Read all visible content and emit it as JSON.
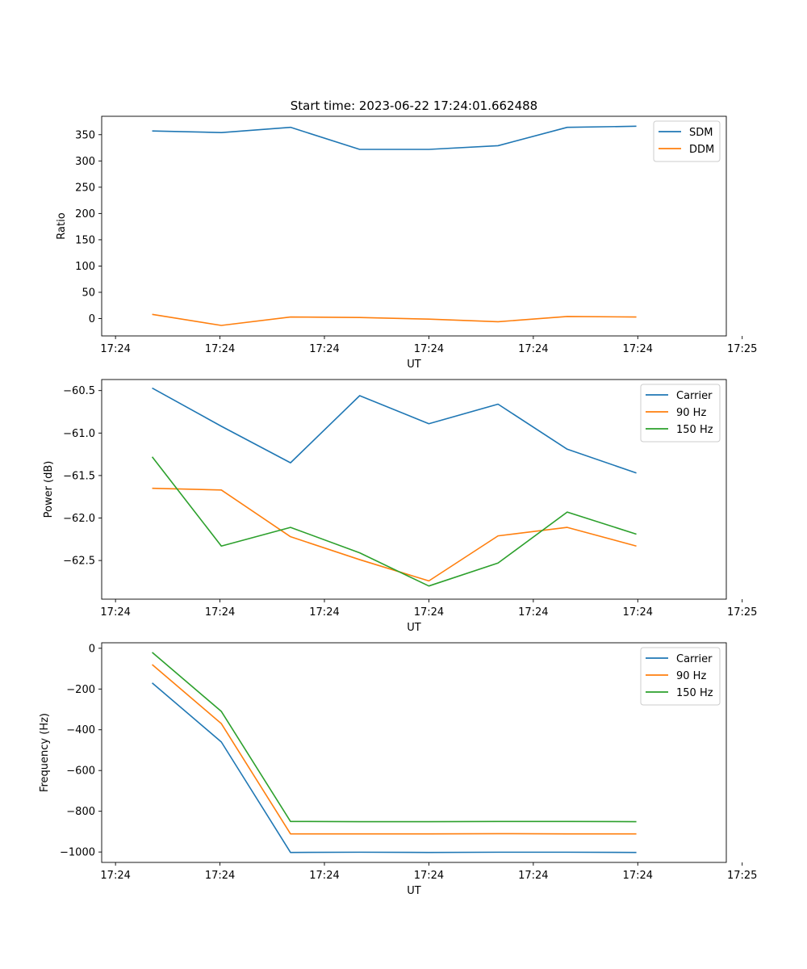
{
  "title": "Start time: 2023-06-22 17:24:01.662488",
  "chart_data": [
    {
      "type": "line",
      "ylabel": "Ratio",
      "xlabel": "UT",
      "x": [
        1,
        2,
        3,
        4,
        5,
        6,
        7,
        8
      ],
      "xlim": [
        0.27,
        9.3
      ],
      "xticks": [
        0.47,
        1.98,
        3.49,
        5.0,
        6.51,
        8.02,
        9.53
      ],
      "xtick_labels": [
        "17:24",
        "17:24",
        "17:24",
        "17:24",
        "17:24",
        "17:24",
        "17:25"
      ],
      "ylim": [
        -33,
        385
      ],
      "yticks": [
        0,
        50,
        100,
        150,
        200,
        250,
        300,
        350
      ],
      "legend": "top-right",
      "series": [
        {
          "name": "SDM",
          "color": "#1f77b4",
          "values": [
            357,
            354,
            364,
            322,
            322,
            329,
            364,
            366
          ]
        },
        {
          "name": "DDM",
          "color": "#ff7f0e",
          "values": [
            8,
            -13,
            3,
            2,
            -1,
            -6,
            4,
            3
          ]
        }
      ]
    },
    {
      "type": "line",
      "ylabel": "Power (dB)",
      "xlabel": "UT",
      "x": [
        1,
        2,
        3,
        4,
        5,
        6,
        7,
        8
      ],
      "xlim": [
        0.27,
        9.3
      ],
      "xticks": [
        0.47,
        1.98,
        3.49,
        5.0,
        6.51,
        8.02,
        9.53
      ],
      "xtick_labels": [
        "17:24",
        "17:24",
        "17:24",
        "17:24",
        "17:24",
        "17:24",
        "17:25"
      ],
      "ylim": [
        -62.955,
        -60.37
      ],
      "yticks": [
        -62.5,
        -62.0,
        -61.5,
        -61.0,
        -60.5
      ],
      "ytick_labels": [
        "−62.5",
        "−62.0",
        "−61.5",
        "−61.0",
        "−60.5"
      ],
      "legend": "top-right",
      "series": [
        {
          "name": "Carrier",
          "color": "#1f77b4",
          "values": [
            -60.47,
            -60.92,
            -61.35,
            -60.56,
            -60.89,
            -60.66,
            -61.19,
            -61.47
          ]
        },
        {
          "name": "90 Hz",
          "color": "#ff7f0e",
          "values": [
            -61.65,
            -61.67,
            -62.22,
            -62.49,
            -62.74,
            -62.21,
            -62.11,
            -62.33
          ]
        },
        {
          "name": "150 Hz",
          "color": "#2ca02c",
          "values": [
            -61.28,
            -62.33,
            -62.11,
            -62.41,
            -62.8,
            -62.53,
            -61.93,
            -62.19
          ]
        }
      ]
    },
    {
      "type": "line",
      "ylabel": "Frequency (Hz)",
      "xlabel": "UT",
      "x": [
        1,
        2,
        3,
        4,
        5,
        6,
        7,
        8
      ],
      "xlim": [
        0.27,
        9.3
      ],
      "xticks": [
        0.47,
        1.98,
        3.49,
        5.0,
        6.51,
        8.02,
        9.53
      ],
      "xtick_labels": [
        "17:24",
        "17:24",
        "17:24",
        "17:24",
        "17:24",
        "17:24",
        "17:25"
      ],
      "ylim": [
        -1051,
        27
      ],
      "yticks": [
        -1000,
        -800,
        -600,
        -400,
        -200,
        0
      ],
      "ytick_labels": [
        "−1000",
        "−800",
        "−600",
        "−400",
        "−200",
        "0"
      ],
      "legend": "top-right",
      "series": [
        {
          "name": "Carrier",
          "color": "#1f77b4",
          "values": [
            -170,
            -460,
            -1002,
            -1001,
            -1002,
            -1001,
            -1001,
            -1002
          ]
        },
        {
          "name": "90 Hz",
          "color": "#ff7f0e",
          "values": [
            -80,
            -370,
            -911,
            -911,
            -911,
            -910,
            -911,
            -911
          ]
        },
        {
          "name": "150 Hz",
          "color": "#2ca02c",
          "values": [
            -20,
            -310,
            -850,
            -851,
            -851,
            -850,
            -850,
            -851
          ]
        }
      ]
    }
  ]
}
